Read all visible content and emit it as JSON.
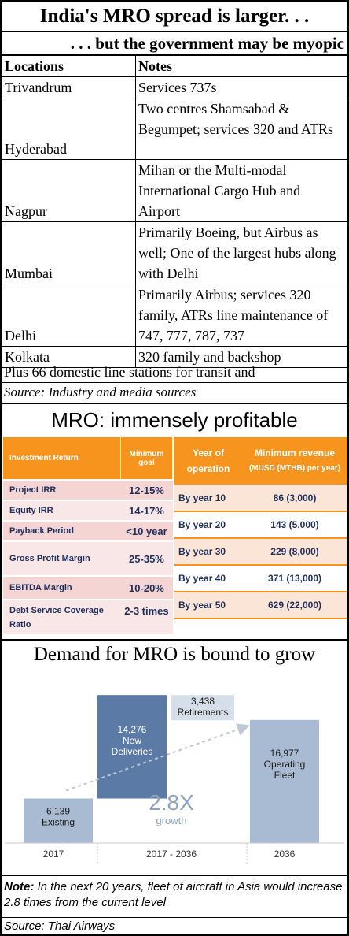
{
  "header": {
    "title": "India's MRO spread is larger. . .",
    "subtitle": ". . . but the government may be myopic"
  },
  "locations_table": {
    "headers": [
      "Locations",
      "Notes"
    ],
    "rows": [
      {
        "location": "Trivandrum",
        "notes": "Services 737s"
      },
      {
        "location": "Hyderabad",
        "notes": "Two centres Shamsabad & Begumpet; services 320 and ATRs"
      },
      {
        "location": "Nagpur",
        "notes": "Mihan or the Multi-modal International Cargo Hub and Airport"
      },
      {
        "location": "Mumbai",
        "notes": "Primarily Boeing, but Airbus as well; One of the largest hubs along with Delhi"
      },
      {
        "location": "Delhi",
        "notes": "Primarily Airbus; services 320 family, ATRs line maintenance of 747, 777, 787, 737"
      },
      {
        "location": "Kolkata",
        "notes": "320 family and backshop"
      }
    ],
    "footer": "Plus 66 domestic line stations for transit and",
    "source": "Source: Industry and media sources"
  },
  "profitable": {
    "title": "MRO: immensely profitable",
    "investment_headers": [
      "Investment Return",
      "Minimum goal"
    ],
    "investment_rows": [
      {
        "label": "Project IRR",
        "goal": "12-15%"
      },
      {
        "label": "Equity IRR",
        "goal": "14-17%"
      },
      {
        "label": "Payback Period",
        "goal": "<10 year"
      },
      {
        "label": "Gross Profit Margin",
        "goal": "25-35%"
      },
      {
        "label": "EBITDA Margin",
        "goal": "10-20%"
      },
      {
        "label": "Debt Service Coverage Ratio",
        "goal": "2-3 times"
      }
    ],
    "revenue_headers": {
      "col1": "Year of operation",
      "col2": "Minimum revenue",
      "col2_sub": "(MUSD (MTHB) per year)"
    },
    "revenue_rows": [
      {
        "year": "By year 10",
        "revenue": "86 (3,000)"
      },
      {
        "year": "By year 20",
        "revenue": "143 (5,000)"
      },
      {
        "year": "By year 30",
        "revenue": "229 (8,000)"
      },
      {
        "year": "By year 40",
        "revenue": "371 (13,000)"
      },
      {
        "year": "By year 50",
        "revenue": "629 (22,000)"
      }
    ]
  },
  "demand": {
    "title": "Demand for MRO is bound to grow",
    "growth_label": "2.8X",
    "growth_sub": "growth",
    "note_label": "Note:",
    "note_text": " In the next 20 years, fleet of aircraft in Asia would increase 2.8 times from the current level",
    "source": "Source: Thai Airways"
  },
  "chart_data": {
    "type": "bar",
    "categories": [
      "2017",
      "2017 - 2036",
      "2036"
    ],
    "bars": [
      {
        "category": "2017",
        "value": 6139,
        "label": "Existing",
        "color": "#a9bbd3"
      },
      {
        "category": "2017 - 2036",
        "value": 14276,
        "label": "New Deliveries",
        "color": "#5b7aa6"
      },
      {
        "category": "2017 - 2036",
        "value": 3438,
        "label": "Retirements",
        "color": "#d6dfe9"
      },
      {
        "category": "2036",
        "value": 16977,
        "label": "Operating Fleet",
        "color": "#a9bbd3"
      }
    ]
  }
}
